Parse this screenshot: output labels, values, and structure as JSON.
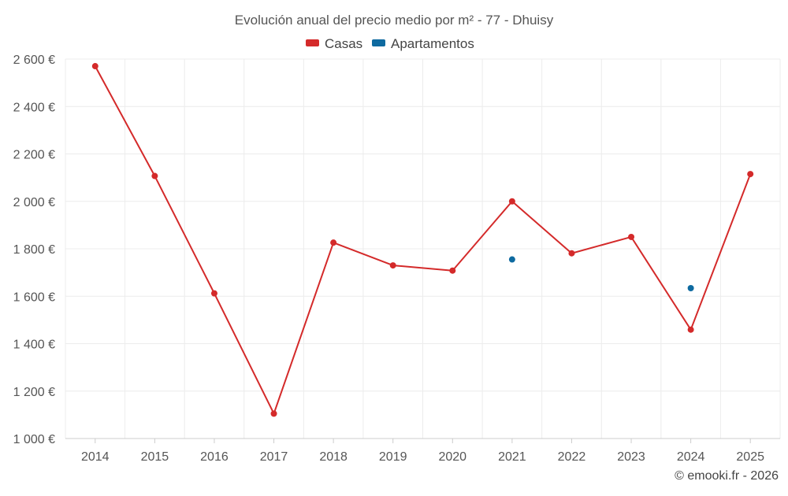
{
  "chart_data": {
    "type": "line",
    "title": "Evolución anual del precio medio por m² - 77 - Dhuisy",
    "categories": [
      "2014",
      "2015",
      "2016",
      "2017",
      "2018",
      "2019",
      "2020",
      "2021",
      "2022",
      "2023",
      "2024",
      "2025"
    ],
    "series": [
      {
        "name": "Casas",
        "color": "#d42a2a",
        "values": [
          2570,
          2107,
          1612,
          1105,
          1826,
          1730,
          1708,
          2000,
          1781,
          1850,
          1459,
          2115
        ]
      },
      {
        "name": "Apartamentos",
        "color": "#0e6aa0",
        "values": [
          null,
          null,
          null,
          null,
          null,
          null,
          null,
          1755,
          null,
          null,
          1634,
          null
        ]
      }
    ],
    "ylim": [
      1000,
      2600
    ],
    "yticks": [
      1000,
      1200,
      1400,
      1600,
      1800,
      2000,
      2200,
      2400,
      2600
    ],
    "ytick_labels": [
      "1 000 €",
      "1 200 €",
      "1 400 €",
      "1 600 €",
      "1 800 €",
      "2 000 €",
      "2 200 €",
      "2 400 €",
      "2 600 €"
    ],
    "xlabel": "",
    "ylabel": "",
    "grid": true,
    "legend_position": "top-center"
  },
  "credit": "© emooki.fr - 2026"
}
